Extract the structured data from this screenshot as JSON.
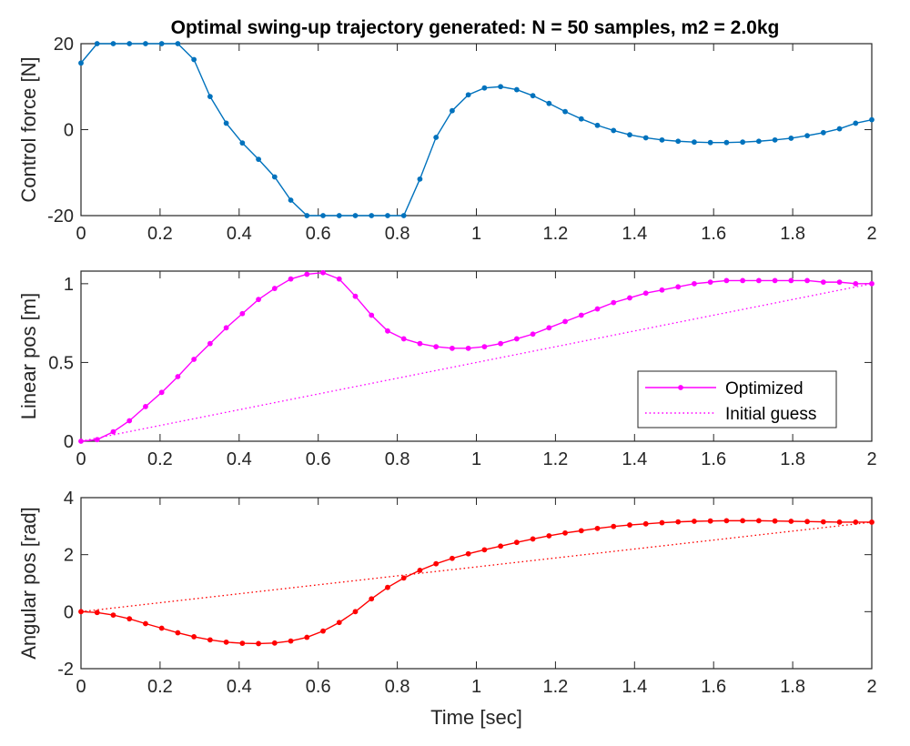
{
  "chart_data": [
    {
      "type": "line",
      "title": "Optimal swing-up trajectory generated: N = 50 samples, m2 = 2.0kg",
      "xlabel": "",
      "ylabel": "Control force [N]",
      "xlim": [
        0,
        2
      ],
      "ylim": [
        -20,
        20
      ],
      "xticks": [
        "0",
        "0.2",
        "0.4",
        "0.6",
        "0.8",
        "1",
        "1.2",
        "1.4",
        "1.6",
        "1.8",
        "2"
      ],
      "yticks": [
        "-20",
        "0",
        "20"
      ],
      "grid": false,
      "series": [
        {
          "color": "#0072BD",
          "style": "solid-dots",
          "x": [
            0,
            0.04082,
            0.08163,
            0.12245,
            0.16327,
            0.20408,
            0.2449,
            0.28571,
            0.32653,
            0.36735,
            0.40816,
            0.44898,
            0.4898,
            0.53061,
            0.57143,
            0.61224,
            0.65306,
            0.69388,
            0.73469,
            0.77551,
            0.81633,
            0.85714,
            0.89796,
            0.93878,
            0.97959,
            1.02041,
            1.06122,
            1.10204,
            1.14286,
            1.18367,
            1.22449,
            1.26531,
            1.30612,
            1.34694,
            1.38776,
            1.42857,
            1.46939,
            1.5102,
            1.55102,
            1.59184,
            1.63265,
            1.67347,
            1.71429,
            1.7551,
            1.79592,
            1.83673,
            1.87755,
            1.91837,
            1.95918,
            2.0
          ],
          "y": [
            15.5,
            20,
            20,
            20,
            20,
            20,
            20,
            16.3,
            7.7,
            1.5,
            -3.1,
            -6.9,
            -11,
            -16.4,
            -20,
            -20,
            -20,
            -20,
            -20,
            -20,
            -20,
            -11.5,
            -1.8,
            4.4,
            8.1,
            9.7,
            10,
            9.3,
            7.9,
            6.1,
            4.2,
            2.5,
            1.0,
            -0.2,
            -1.2,
            -1.9,
            -2.4,
            -2.7,
            -2.9,
            -3.0,
            -3.0,
            -2.9,
            -2.7,
            -2.4,
            -2.0,
            -1.4,
            -0.7,
            0.2,
            1.5,
            2.3
          ]
        }
      ]
    },
    {
      "type": "line",
      "title": "",
      "xlabel": "",
      "ylabel": "Linear pos [m]",
      "xlim": [
        0,
        2
      ],
      "ylim": [
        0,
        1.08
      ],
      "xticks": [
        "0",
        "0.2",
        "0.4",
        "0.6",
        "0.8",
        "1",
        "1.2",
        "1.4",
        "1.6",
        "1.8",
        "2"
      ],
      "yticks": [
        "0",
        "0.5",
        "1"
      ],
      "grid": false,
      "legend": "bottom-right",
      "series": [
        {
          "name": "Optimized",
          "color": "#FF00FF",
          "style": "solid-dots",
          "x": [
            0,
            0.04082,
            0.08163,
            0.12245,
            0.16327,
            0.20408,
            0.2449,
            0.28571,
            0.32653,
            0.36735,
            0.40816,
            0.44898,
            0.4898,
            0.53061,
            0.57143,
            0.61224,
            0.65306,
            0.69388,
            0.73469,
            0.77551,
            0.81633,
            0.85714,
            0.89796,
            0.93878,
            0.97959,
            1.02041,
            1.06122,
            1.10204,
            1.14286,
            1.18367,
            1.22449,
            1.26531,
            1.30612,
            1.34694,
            1.38776,
            1.42857,
            1.46939,
            1.5102,
            1.55102,
            1.59184,
            1.63265,
            1.67347,
            1.71429,
            1.7551,
            1.79592,
            1.83673,
            1.87755,
            1.91837,
            1.95918,
            2.0
          ],
          "y": [
            0,
            0.01,
            0.06,
            0.13,
            0.22,
            0.31,
            0.41,
            0.52,
            0.62,
            0.72,
            0.81,
            0.9,
            0.97,
            1.03,
            1.06,
            1.07,
            1.03,
            0.92,
            0.8,
            0.7,
            0.65,
            0.62,
            0.6,
            0.59,
            0.59,
            0.6,
            0.62,
            0.65,
            0.68,
            0.72,
            0.76,
            0.8,
            0.84,
            0.88,
            0.91,
            0.94,
            0.96,
            0.98,
            1.0,
            1.01,
            1.02,
            1.02,
            1.02,
            1.02,
            1.02,
            1.02,
            1.01,
            1.01,
            1.0,
            1.0
          ]
        },
        {
          "name": "Initial guess",
          "color": "#FF00FF",
          "style": "dotted",
          "x": [
            0,
            2
          ],
          "y": [
            0,
            1.0
          ]
        }
      ]
    },
    {
      "type": "line",
      "title": "",
      "xlabel": "Time [sec]",
      "ylabel": "Angular pos [rad]",
      "xlim": [
        0,
        2
      ],
      "ylim": [
        -2,
        4
      ],
      "xticks": [
        "0",
        "0.2",
        "0.4",
        "0.6",
        "0.8",
        "1",
        "1.2",
        "1.4",
        "1.6",
        "1.8",
        "2"
      ],
      "yticks": [
        "-2",
        "0",
        "2",
        "4"
      ],
      "grid": false,
      "series": [
        {
          "color": "#FF0000",
          "style": "solid-dots",
          "x": [
            0,
            0.04082,
            0.08163,
            0.12245,
            0.16327,
            0.20408,
            0.2449,
            0.28571,
            0.32653,
            0.36735,
            0.40816,
            0.44898,
            0.4898,
            0.53061,
            0.57143,
            0.61224,
            0.65306,
            0.69388,
            0.73469,
            0.77551,
            0.81633,
            0.85714,
            0.89796,
            0.93878,
            0.97959,
            1.02041,
            1.06122,
            1.10204,
            1.14286,
            1.18367,
            1.22449,
            1.26531,
            1.30612,
            1.34694,
            1.38776,
            1.42857,
            1.46939,
            1.5102,
            1.55102,
            1.59184,
            1.63265,
            1.67347,
            1.71429,
            1.7551,
            1.79592,
            1.83673,
            1.87755,
            1.91837,
            1.95918,
            2.0
          ],
          "y": [
            0,
            -0.03,
            -0.12,
            -0.25,
            -0.42,
            -0.58,
            -0.74,
            -0.88,
            -0.99,
            -1.07,
            -1.11,
            -1.12,
            -1.1,
            -1.03,
            -0.9,
            -0.68,
            -0.38,
            0.0,
            0.45,
            0.85,
            1.18,
            1.45,
            1.68,
            1.87,
            2.03,
            2.17,
            2.3,
            2.43,
            2.55,
            2.66,
            2.76,
            2.84,
            2.92,
            2.99,
            3.04,
            3.08,
            3.12,
            3.15,
            3.17,
            3.18,
            3.19,
            3.19,
            3.19,
            3.18,
            3.17,
            3.16,
            3.15,
            3.14,
            3.14,
            3.14
          ]
        },
        {
          "color": "#FF0000",
          "style": "dotted",
          "x": [
            0,
            2
          ],
          "y": [
            0,
            3.14
          ]
        }
      ]
    }
  ]
}
